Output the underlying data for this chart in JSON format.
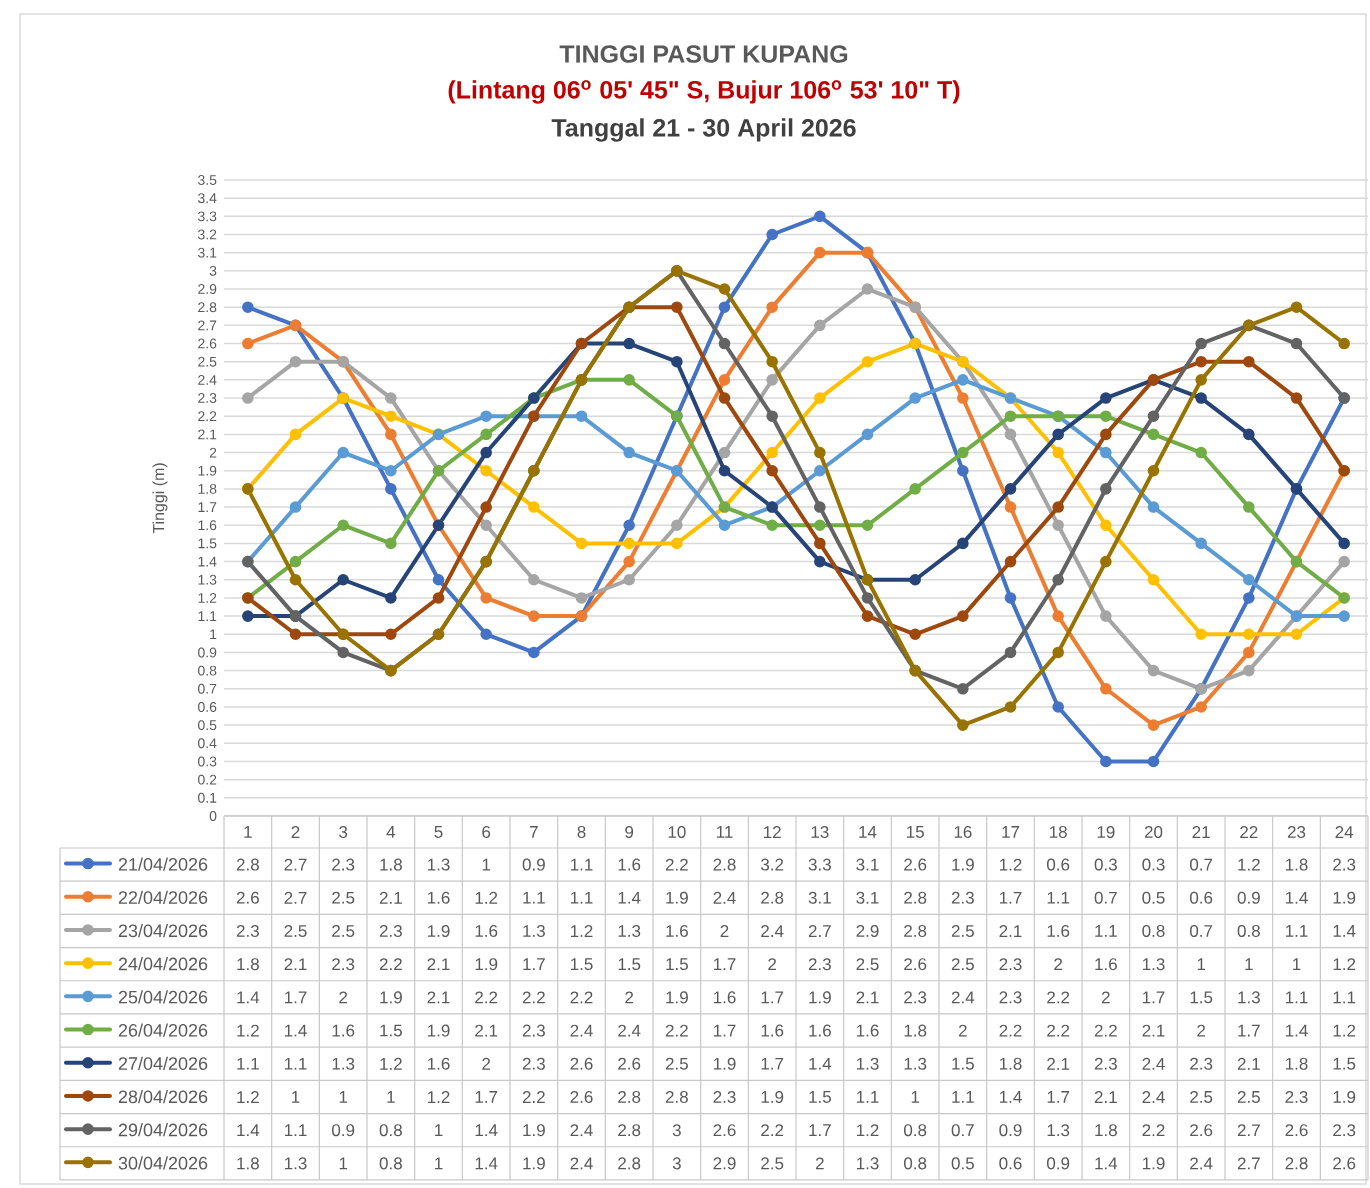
{
  "chart_data": {
    "type": "line",
    "title": "TINGGI PASUT KUPANG",
    "subtitle": "(Lintang 06$^{o}$ 05' 45\" S, Bujur 106$^{o}$ 53' 10\" T)",
    "annotations": [
      "Tanggal 21 - 30 April 2026"
    ],
    "ylabel": "Tinggi (m)",
    "categories": [
      "1",
      "2",
      "3",
      "4",
      "5",
      "6",
      "7",
      "8",
      "9",
      "10",
      "11",
      "12",
      "13",
      "14",
      "15",
      "16",
      "17",
      "18",
      "19",
      "20",
      "21",
      "22",
      "23",
      "24"
    ],
    "ylim": [
      0,
      3.5
    ],
    "yticks": [
      0,
      0.1,
      0.2,
      0.3,
      0.4,
      0.5,
      0.6,
      0.7,
      0.8,
      0.9,
      1,
      1.1,
      1.2,
      1.3,
      1.4,
      1.5,
      1.6,
      1.7,
      1.8,
      1.9,
      2,
      2.1,
      2.2,
      2.3,
      2.4,
      2.5,
      2.6,
      2.7,
      2.8,
      2.9,
      3,
      3.1,
      3.2,
      3.3,
      3.4,
      3.5
    ],
    "grid": "y",
    "legend": "bottom",
    "marker": "circle",
    "line_style": "solid",
    "data_labels": true,
    "series": [
      {
        "name": "21/04/2026",
        "color": "#4472c4",
        "values": [
          2.8,
          2.7,
          2.3,
          1.8,
          1.3,
          1,
          0.9,
          1.1,
          1.6,
          2.2,
          2.8,
          3.2,
          3.3,
          3.1,
          2.6,
          1.9,
          1.2,
          0.6,
          0.3,
          0.3,
          0.7,
          1.2,
          1.8,
          2.3
        ]
      },
      {
        "name": "22/04/2026",
        "color": "#ed7d31",
        "values": [
          2.6,
          2.7,
          2.5,
          2.1,
          1.6,
          1.2,
          1.1,
          1.1,
          1.4,
          1.9,
          2.4,
          2.8,
          3.1,
          3.1,
          2.8,
          2.3,
          1.7,
          1.1,
          0.7,
          0.5,
          0.6,
          0.9,
          1.4,
          1.9
        ]
      },
      {
        "name": "23/04/2026",
        "color": "#a5a5a5",
        "values": [
          2.3,
          2.5,
          2.5,
          2.3,
          1.9,
          1.6,
          1.3,
          1.2,
          1.3,
          1.6,
          2,
          2.4,
          2.7,
          2.9,
          2.8,
          2.5,
          2.1,
          1.6,
          1.1,
          0.8,
          0.7,
          0.8,
          1.1,
          1.4
        ]
      },
      {
        "name": "24/04/2026",
        "color": "#ffc000",
        "values": [
          1.8,
          2.1,
          2.3,
          2.2,
          2.1,
          1.9,
          1.7,
          1.5,
          1.5,
          1.5,
          1.7,
          2,
          2.3,
          2.5,
          2.6,
          2.5,
          2.3,
          2,
          1.6,
          1.3,
          1,
          1,
          1,
          1.2
        ]
      },
      {
        "name": "25/04/2026",
        "color": "#5b9bd5",
        "values": [
          1.4,
          1.7,
          2,
          1.9,
          2.1,
          2.2,
          2.2,
          2.2,
          2,
          1.9,
          1.6,
          1.7,
          1.9,
          2.1,
          2.3,
          2.4,
          2.3,
          2.2,
          2,
          1.7,
          1.5,
          1.3,
          1.1,
          1.1
        ]
      },
      {
        "name": "26/04/2026",
        "color": "#70ad47",
        "values": [
          1.2,
          1.4,
          1.6,
          1.5,
          1.9,
          2.1,
          2.3,
          2.4,
          2.4,
          2.2,
          1.7,
          1.6,
          1.6,
          1.6,
          1.8,
          2,
          2.2,
          2.2,
          2.2,
          2.1,
          2,
          1.7,
          1.4,
          1.2
        ]
      },
      {
        "name": "27/04/2026",
        "color": "#264478",
        "values": [
          1.1,
          1.1,
          1.3,
          1.2,
          1.6,
          2,
          2.3,
          2.6,
          2.6,
          2.5,
          1.9,
          1.7,
          1.4,
          1.3,
          1.3,
          1.5,
          1.8,
          2.1,
          2.3,
          2.4,
          2.3,
          2.1,
          1.8,
          1.5
        ]
      },
      {
        "name": "28/04/2026",
        "color": "#9e480e",
        "values": [
          1.2,
          1,
          1,
          1,
          1.2,
          1.7,
          2.2,
          2.6,
          2.8,
          2.8,
          2.3,
          1.9,
          1.5,
          1.1,
          1,
          1.1,
          1.4,
          1.7,
          2.1,
          2.4,
          2.5,
          2.5,
          2.3,
          1.9
        ]
      },
      {
        "name": "29/04/2026",
        "color": "#636363",
        "values": [
          1.4,
          1.1,
          0.9,
          0.8,
          1,
          1.4,
          1.9,
          2.4,
          2.8,
          3,
          2.6,
          2.2,
          1.7,
          1.2,
          0.8,
          0.7,
          0.9,
          1.3,
          1.8,
          2.2,
          2.6,
          2.7,
          2.6,
          2.3
        ]
      },
      {
        "name": "30/04/2026",
        "color": "#997300",
        "values": [
          1.8,
          1.3,
          1,
          0.8,
          1,
          1.4,
          1.9,
          2.4,
          2.8,
          3,
          2.9,
          2.5,
          2,
          1.3,
          0.8,
          0.5,
          0.6,
          0.9,
          1.4,
          1.9,
          2.4,
          2.7,
          2.8,
          2.6
        ]
      }
    ]
  }
}
